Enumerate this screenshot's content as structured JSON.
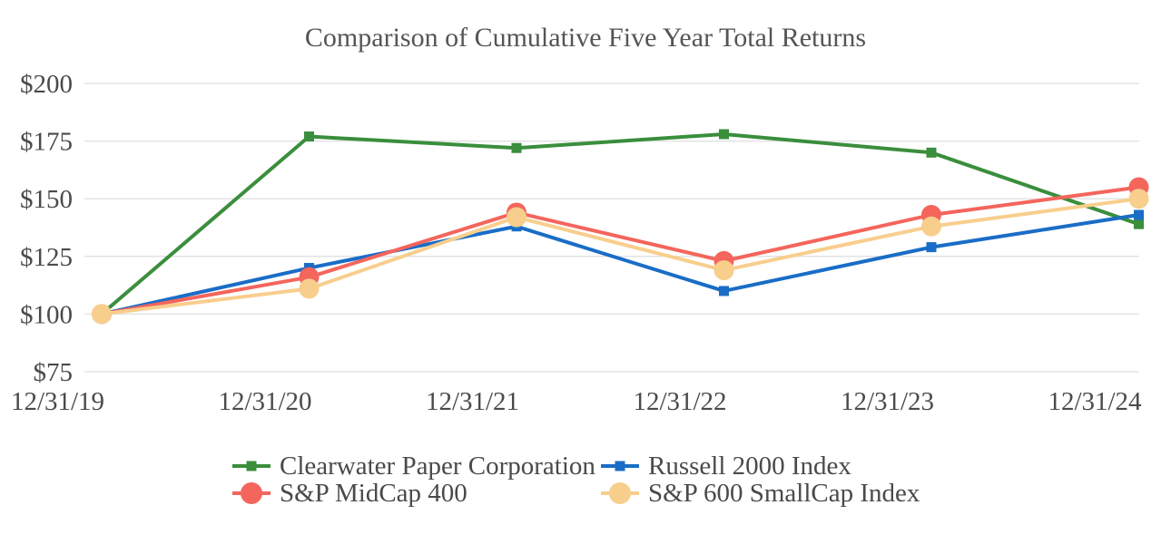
{
  "chart_data": {
    "type": "line",
    "title": "Comparison of Cumulative Five Year Total Returns",
    "categories": [
      "12/31/19",
      "12/31/20",
      "12/31/21",
      "12/31/22",
      "12/31/23",
      "12/31/24"
    ],
    "series": [
      {
        "name": "Clearwater Paper Corporation",
        "color": "#3A8E3C",
        "marker": "square",
        "values": [
          100,
          177,
          172,
          178,
          170,
          139
        ]
      },
      {
        "name": "Russell 2000 Index",
        "color": "#1A6DC6",
        "marker": "square",
        "values": [
          100,
          120,
          138,
          110,
          129,
          143
        ]
      },
      {
        "name": "S&P MidCap 400",
        "color": "#F4655C",
        "marker": "circle",
        "values": [
          100,
          116,
          144,
          123,
          143,
          155
        ]
      },
      {
        "name": "S&P 600 SmallCap Index",
        "color": "#F8CE8D",
        "marker": "circle",
        "values": [
          100,
          111,
          142,
          119,
          138,
          150
        ]
      }
    ],
    "y_axis": {
      "ticks": [
        "$200",
        "$175",
        "$150",
        "$125",
        "$100",
        "$75"
      ],
      "values": [
        200,
        175,
        150,
        125,
        100,
        75
      ],
      "min": 75,
      "max": 200
    },
    "ylim": [
      75,
      200
    ],
    "xlabel": "",
    "ylabel": "",
    "grid": true,
    "legend_position": "bottom",
    "styles": {
      "gridline_color": "#e3e3e3",
      "text_color": "#4a4a4a",
      "title_color": "#555555",
      "background": "#ffffff"
    }
  }
}
